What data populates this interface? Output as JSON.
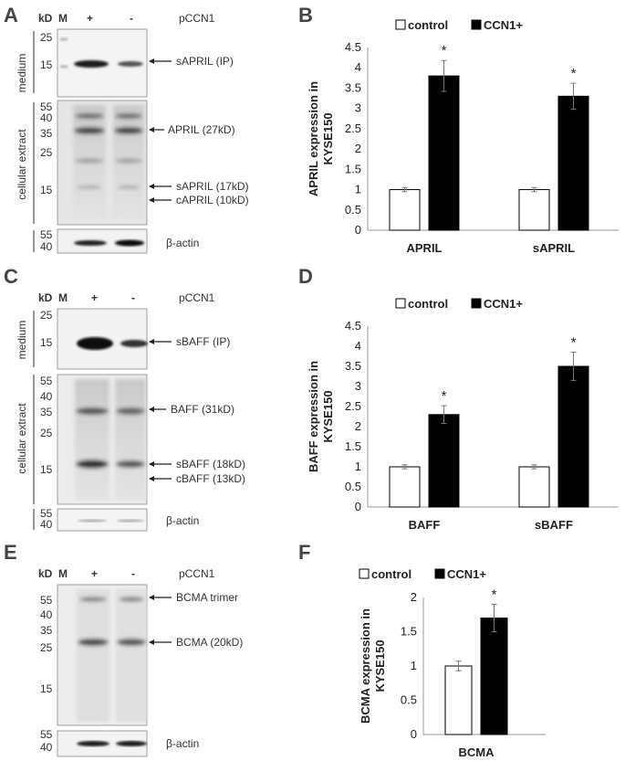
{
  "panels": [
    "A",
    "B",
    "C",
    "D",
    "E",
    "F"
  ],
  "blots": [
    {
      "id": "A",
      "header": {
        "kd": "kD",
        "m": "M",
        "plus": "+",
        "minus": "-",
        "construct": "pCCN1"
      },
      "sections": [
        {
          "name": "medium",
          "markers": [
            "25",
            "15"
          ],
          "bands": [
            "sAPRIL (IP)"
          ]
        },
        {
          "name": "cellular extract",
          "markers": [
            "55",
            "40",
            "35",
            "25",
            "15"
          ],
          "bands": [
            "APRIL (27kD)",
            "sAPRIL (17kD)",
            "cAPRIL (10kD)"
          ]
        },
        {
          "name": "",
          "markers": [
            "55",
            "40"
          ],
          "bands": [
            "β-actin"
          ]
        }
      ]
    },
    {
      "id": "C",
      "header": {
        "kd": "kD",
        "m": "M",
        "plus": "+",
        "minus": "-",
        "construct": "pCCN1"
      },
      "sections": [
        {
          "name": "medium",
          "markers": [
            "25",
            "15"
          ],
          "bands": [
            "sBAFF (IP)"
          ]
        },
        {
          "name": "cellular extract",
          "markers": [
            "55",
            "40",
            "35",
            "25",
            "15"
          ],
          "bands": [
            "BAFF (31kD)",
            "sBAFF (18kD)",
            "cBAFF (13kD)"
          ]
        },
        {
          "name": "",
          "markers": [
            "55",
            "40"
          ],
          "bands": [
            "β-actin"
          ]
        }
      ]
    },
    {
      "id": "E",
      "header": {
        "kd": "kD",
        "m": "M",
        "plus": "+",
        "minus": "-",
        "construct": "pCCN1"
      },
      "sections": [
        {
          "name": "",
          "markers": [
            "55",
            "40",
            "35",
            "25",
            "15"
          ],
          "bands": [
            "BCMA trimer",
            "BCMA (20kD)"
          ]
        },
        {
          "name": "",
          "markers": [
            "55",
            "40"
          ],
          "bands": [
            "β-actin"
          ]
        }
      ]
    }
  ],
  "chart_data": [
    {
      "panel": "B",
      "type": "bar",
      "categories": [
        "APRIL",
        "sAPRIL"
      ],
      "series": [
        {
          "name": "control",
          "values": [
            1.0,
            1.0
          ],
          "errors": [
            0.05,
            0.05
          ],
          "color": "#ffffff"
        },
        {
          "name": "CCN1+",
          "values": [
            3.8,
            3.3
          ],
          "errors": [
            0.38,
            0.32
          ],
          "color": "#000000"
        }
      ],
      "significance": [
        "*",
        "*"
      ],
      "ylabel": "APRIL expression in KYSE150",
      "ylim": [
        0,
        4.5
      ],
      "yticks": [
        "0",
        "0.5",
        "1",
        "1.5",
        "2",
        "2.5",
        "3",
        "3.5",
        "4",
        "4.5"
      ],
      "legend": "top"
    },
    {
      "panel": "D",
      "type": "bar",
      "categories": [
        "BAFF",
        "sBAFF"
      ],
      "series": [
        {
          "name": "control",
          "values": [
            1.0,
            1.0
          ],
          "errors": [
            0.05,
            0.05
          ],
          "color": "#ffffff"
        },
        {
          "name": "CCN1+",
          "values": [
            2.3,
            3.5
          ],
          "errors": [
            0.22,
            0.35
          ],
          "color": "#000000"
        }
      ],
      "significance": [
        "*",
        "*"
      ],
      "ylabel": "BAFF expression in KYSE150",
      "ylim": [
        0,
        4.5
      ],
      "yticks": [
        "0",
        "0.5",
        "1",
        "1.5",
        "2",
        "2.5",
        "3",
        "3.5",
        "4",
        "4.5"
      ],
      "legend": "top"
    },
    {
      "panel": "F",
      "type": "bar",
      "categories": [
        "BCMA"
      ],
      "series": [
        {
          "name": "control",
          "values": [
            1.0
          ],
          "errors": [
            0.07
          ],
          "color": "#ffffff"
        },
        {
          "name": "CCN1+",
          "values": [
            1.7
          ],
          "errors": [
            0.2
          ],
          "color": "#000000"
        }
      ],
      "significance": [
        "*"
      ],
      "ylabel": "BCMA expression in KYSE150",
      "ylim": [
        0,
        2
      ],
      "yticks": [
        "0",
        "0.5",
        "1",
        "1.5",
        "2"
      ],
      "legend": "top"
    }
  ]
}
